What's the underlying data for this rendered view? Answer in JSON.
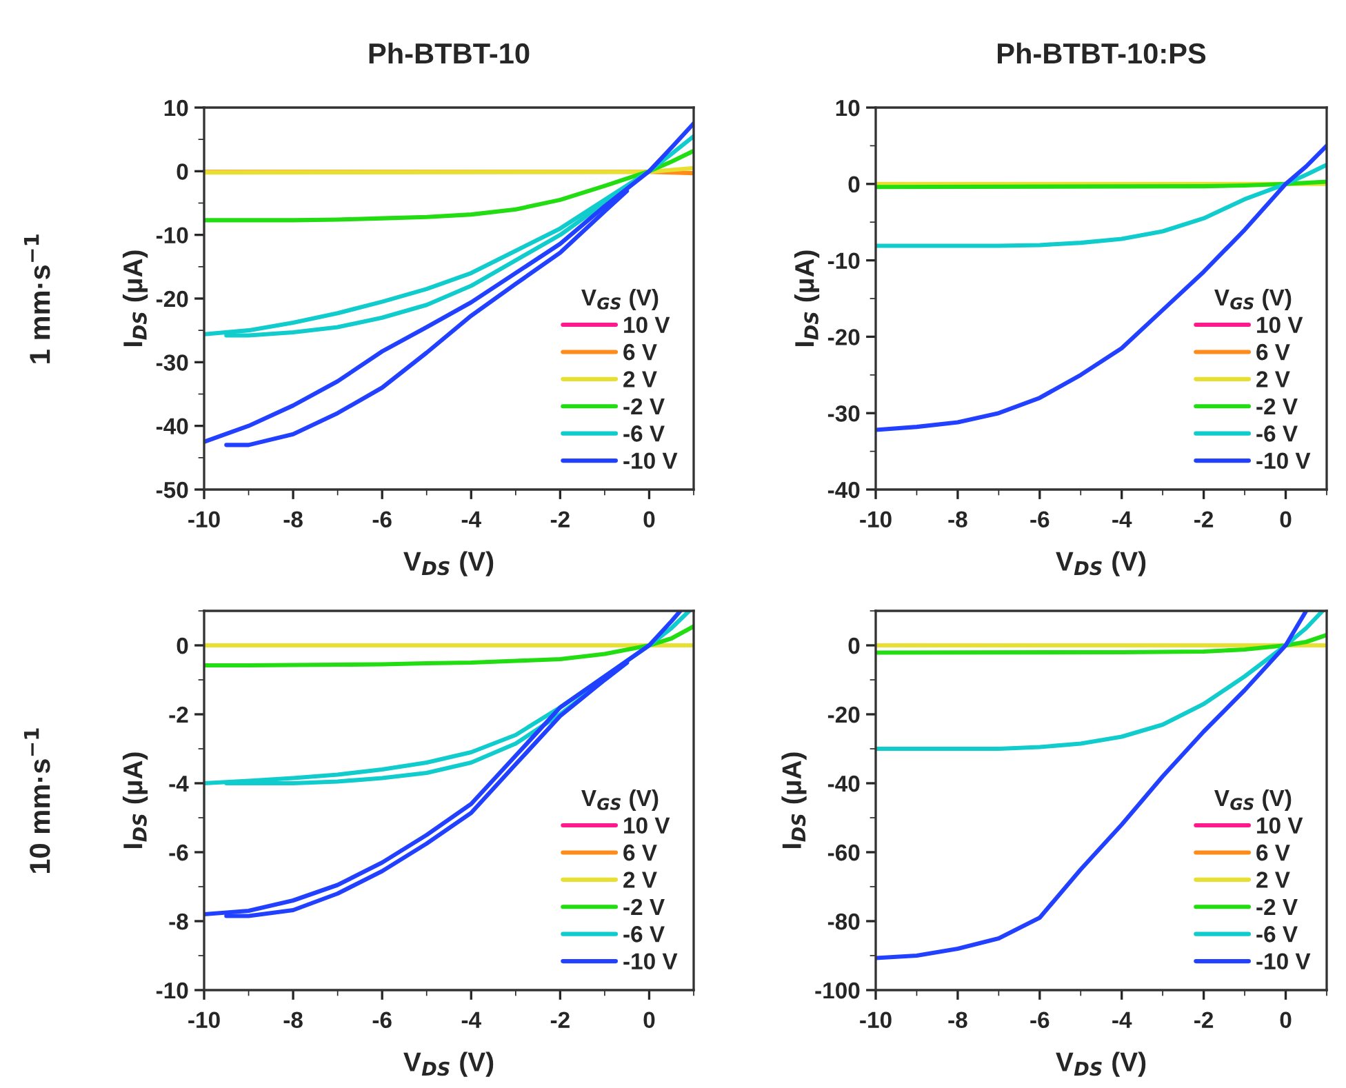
{
  "chart_data": [
    {
      "type": "line",
      "title": "Ph-BTBT-10",
      "xlabel": "V$_{DS}$ (V)",
      "ylabel": "I$_{DS}$ (μA)",
      "legend_title": "V$_{GS}$ (V)",
      "annotations": [
        "1 mm·s$^{−1}$"
      ],
      "xlim": [
        -10,
        1
      ],
      "xticks": [
        -10,
        -8,
        -6,
        -4,
        -2,
        0
      ],
      "ylim": [
        -50,
        10
      ],
      "yticks": [
        -50,
        -40,
        -30,
        -20,
        -10,
        0,
        10
      ],
      "grid": false,
      "legend": "bottom right",
      "marker": "none",
      "line_style": "solid",
      "series": [
        {
          "name": "10 V",
          "color": "#ff1a8c",
          "values": [
            null
          ]
        },
        {
          "name": "6 V",
          "color": "#ff8c1a",
          "x": [
            -10,
            0,
            1
          ],
          "values": [
            -0.1,
            -0.1,
            -0.3
          ]
        },
        {
          "name": "2 V",
          "color": "#e8e030",
          "x": [
            -10,
            0,
            1
          ],
          "values": [
            -0.2,
            -0.1,
            0.5
          ]
        },
        {
          "name": "-2 V",
          "color": "#22dd11",
          "x": [
            -10,
            -9,
            -8,
            -7,
            -6,
            -5,
            -4,
            -3,
            -2,
            -1,
            0,
            0.5,
            1
          ],
          "values": [
            -7.7,
            -7.7,
            -7.7,
            -7.6,
            -7.4,
            -7.2,
            -6.8,
            -6,
            -4.5,
            -2.3,
            0,
            1.5,
            3.2
          ]
        },
        {
          "name": "-6 V",
          "color": "#11cccc",
          "x": [
            -10,
            -9,
            -8,
            -7,
            -6,
            -5,
            -4,
            -3,
            -2,
            -1,
            0,
            0.5,
            1
          ],
          "values": [
            -25.6,
            -25,
            -23.8,
            -22.3,
            -20.5,
            -18.5,
            -16,
            -12.5,
            -9,
            -4.5,
            0,
            2.7,
            5.5
          ]
        },
        {
          "color": "#11cccc",
          "x": [
            -9.5,
            -9,
            -8,
            -7,
            -6,
            -5,
            -4,
            -3,
            -2,
            -1,
            -0.5
          ],
          "values": [
            -25.8,
            -25.8,
            -25.3,
            -24.5,
            -23,
            -21,
            -18,
            -14,
            -10,
            -5,
            -2.5
          ]
        },
        {
          "name": "-10 V",
          "color": "#2240ff",
          "x": [
            -10,
            -9,
            -8,
            -7,
            -6,
            -5,
            -4,
            -3,
            -2,
            -1,
            0,
            0.5,
            1
          ],
          "values": [
            -42.5,
            -40,
            -36.8,
            -33,
            -28.3,
            -24.5,
            -20.6,
            -16,
            -11.4,
            -5.5,
            0,
            3.7,
            7.5
          ]
        },
        {
          "color": "#2240ff",
          "x": [
            -9.5,
            -9,
            -8,
            -7,
            -6,
            -5,
            -4,
            -3,
            -2,
            -1,
            -0.5
          ],
          "values": [
            -43,
            -43,
            -41.3,
            -38,
            -34,
            -28.5,
            -22.7,
            -17.7,
            -12.8,
            -6.3,
            -3.1
          ]
        }
      ]
    },
    {
      "type": "line",
      "title": "Ph-BTBT-10:PS",
      "xlabel": "V$_{DS}$ (V)",
      "ylabel": "I$_{DS}$ (μA)",
      "legend_title": "V$_{GS}$ (V)",
      "xlim": [
        -10,
        1
      ],
      "xticks": [
        -10,
        -8,
        -6,
        -4,
        -2,
        0
      ],
      "ylim": [
        -40,
        10
      ],
      "yticks": [
        -40,
        -30,
        -20,
        -10,
        0,
        10
      ],
      "grid": false,
      "legend": "bottom right",
      "marker": "none",
      "line_style": "solid",
      "series": [
        {
          "name": "10 V",
          "color": "#ff1a8c",
          "values": [
            null
          ]
        },
        {
          "name": "6 V",
          "color": "#ff8c1a",
          "values": [
            null
          ]
        },
        {
          "name": "2 V",
          "color": "#e8e030",
          "x": [
            -10,
            1
          ],
          "values": [
            0,
            0
          ]
        },
        {
          "name": "-2 V",
          "color": "#22dd11",
          "x": [
            -10,
            -2,
            -1,
            0,
            1
          ],
          "values": [
            -0.4,
            -0.3,
            -0.2,
            0,
            0.3
          ]
        },
        {
          "name": "-6 V",
          "color": "#11cccc",
          "x": [
            -10,
            -8,
            -7,
            -6,
            -5,
            -4,
            -3,
            -2,
            -1,
            0,
            0.5,
            1
          ],
          "values": [
            -8.1,
            -8.1,
            -8.1,
            -8,
            -7.7,
            -7.2,
            -6.2,
            -4.5,
            -2,
            0,
            1.2,
            2.5
          ]
        },
        {
          "name": "-10 V",
          "color": "#2240ff",
          "x": [
            -10,
            -9,
            -8,
            -7,
            -6,
            -5,
            -4,
            -3,
            -2,
            -1,
            0,
            0.5,
            1
          ],
          "values": [
            -32.2,
            -31.8,
            -31.2,
            -30,
            -28,
            -25,
            -21.5,
            -16.5,
            -11.5,
            -6,
            0,
            2.3,
            5
          ]
        }
      ]
    },
    {
      "type": "line",
      "xlabel": "V$_{DS}$ (V)",
      "ylabel": "I$_{DS}$ (μA)",
      "legend_title": "V$_{GS}$ (V)",
      "annotations": [
        "10 mm·s$^{−1}$"
      ],
      "xlim": [
        -10,
        1
      ],
      "xticks": [
        -10,
        -8,
        -6,
        -4,
        -2,
        0
      ],
      "ylim": [
        -10,
        1
      ],
      "yticks": [
        -10,
        -8,
        -6,
        -4,
        -2,
        0
      ],
      "grid": false,
      "legend": "bottom right",
      "marker": "none",
      "line_style": "solid",
      "series": [
        {
          "name": "10 V",
          "color": "#ff1a8c",
          "values": [
            null
          ]
        },
        {
          "name": "6 V",
          "color": "#ff8c1a",
          "values": [
            null
          ]
        },
        {
          "name": "2 V",
          "color": "#e8e030",
          "x": [
            -10,
            1
          ],
          "values": [
            0,
            0
          ]
        },
        {
          "name": "-2 V",
          "color": "#22dd11",
          "x": [
            -10,
            -9,
            -8,
            -7,
            -6,
            -5,
            -4,
            -3,
            -2,
            -1,
            0,
            0.5,
            1
          ],
          "values": [
            -0.58,
            -0.58,
            -0.57,
            -0.56,
            -0.55,
            -0.52,
            -0.5,
            -0.45,
            -0.4,
            -0.25,
            0,
            0.2,
            0.55
          ]
        },
        {
          "name": "-6 V",
          "color": "#11cccc",
          "x": [
            -10,
            -9,
            -8,
            -7,
            -6,
            -5,
            -4,
            -3,
            -2,
            -1,
            0,
            0.5,
            0.9
          ],
          "values": [
            -4.0,
            -3.93,
            -3.85,
            -3.75,
            -3.6,
            -3.4,
            -3.1,
            -2.6,
            -1.8,
            -0.9,
            0,
            0.5,
            1
          ]
        },
        {
          "color": "#11cccc",
          "x": [
            -9.5,
            -9,
            -8,
            -7,
            -6,
            -5,
            -4,
            -3,
            -2,
            -1,
            -0.5
          ],
          "values": [
            -4.0,
            -4.0,
            -4.0,
            -3.95,
            -3.85,
            -3.7,
            -3.4,
            -2.85,
            -2.0,
            -1.0,
            -0.5
          ]
        },
        {
          "name": "-10 V",
          "color": "#2240ff",
          "x": [
            -10,
            -9,
            -8,
            -7,
            -6,
            -5,
            -4,
            -3,
            -2,
            -1,
            0,
            0.5,
            0.7
          ],
          "values": [
            -7.8,
            -7.7,
            -7.4,
            -6.95,
            -6.3,
            -5.5,
            -4.6,
            -3.2,
            -1.8,
            -0.9,
            0,
            0.7,
            1
          ]
        },
        {
          "color": "#2240ff",
          "x": [
            -9.5,
            -9,
            -8,
            -7,
            -6,
            -5,
            -4,
            -3,
            -2,
            -1,
            -0.5
          ],
          "values": [
            -7.85,
            -7.85,
            -7.68,
            -7.2,
            -6.55,
            -5.75,
            -4.86,
            -3.45,
            -2.05,
            -1.0,
            -0.5
          ]
        }
      ]
    },
    {
      "type": "line",
      "xlabel": "V$_{DS}$ (V)",
      "ylabel": "I$_{DS}$ (μA)",
      "legend_title": "V$_{GS}$ (V)",
      "xlim": [
        -10,
        1
      ],
      "xticks": [
        -10,
        -8,
        -6,
        -4,
        -2,
        0
      ],
      "ylim": [
        -100,
        10
      ],
      "yticks": [
        -100,
        -80,
        -60,
        -40,
        -20,
        0
      ],
      "grid": false,
      "legend": "bottom right",
      "marker": "none",
      "line_style": "solid",
      "series": [
        {
          "name": "10 V",
          "color": "#ff1a8c",
          "values": [
            null
          ]
        },
        {
          "name": "6 V",
          "color": "#ff8c1a",
          "values": [
            null
          ]
        },
        {
          "name": "2 V",
          "color": "#e8e030",
          "x": [
            -10,
            1
          ],
          "values": [
            0,
            0
          ]
        },
        {
          "name": "-2 V",
          "color": "#22dd11",
          "x": [
            -10,
            -4,
            -2,
            -1,
            0,
            0.5,
            1
          ],
          "values": [
            -2.1,
            -2,
            -1.8,
            -1.2,
            0,
            1,
            3
          ]
        },
        {
          "name": "-6 V",
          "color": "#11cccc",
          "x": [
            -10,
            -8,
            -7,
            -6,
            -5,
            -4,
            -3,
            -2,
            -1,
            0,
            0.5,
            0.9
          ],
          "values": [
            -30,
            -30,
            -30,
            -29.5,
            -28.5,
            -26.5,
            -23,
            -17,
            -9,
            0,
            5,
            10
          ]
        },
        {
          "name": "-10 V",
          "color": "#2240ff",
          "x": [
            -10,
            -9,
            -8,
            -7,
            -6,
            -5,
            -4,
            -3,
            -2,
            -1,
            0,
            0.5
          ],
          "values": [
            -90.7,
            -90,
            -88,
            -85,
            -79,
            -65,
            -52,
            -38,
            -25,
            -13,
            0,
            10
          ]
        }
      ]
    }
  ]
}
